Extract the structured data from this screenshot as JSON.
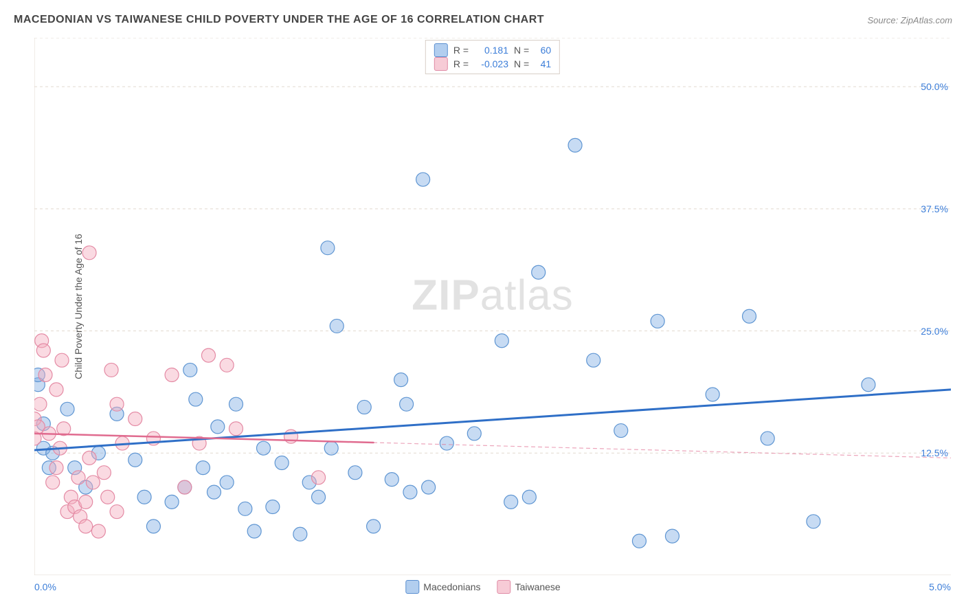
{
  "header": {
    "title": "MACEDONIAN VS TAIWANESE CHILD POVERTY UNDER THE AGE OF 16 CORRELATION CHART",
    "source_label": "Source: ZipAtlas.com"
  },
  "ylabel": "Child Poverty Under the Age of 16",
  "watermark": {
    "bold": "ZIP",
    "rest": "atlas"
  },
  "chart": {
    "type": "scatter-with-regression",
    "background_color": "#ffffff",
    "grid_color": "#e2d9cf",
    "grid_dash": "4 4",
    "border_color": "#e2d9cf",
    "xlim": [
      0.0,
      5.0
    ],
    "ylim": [
      0.0,
      55.0
    ],
    "xtick_major": [
      0.0,
      5.0
    ],
    "xtick_minor_count": 9,
    "ytick_labels": [
      12.5,
      25.0,
      37.5,
      50.0
    ],
    "ylabel_format": "percent_one_decimal",
    "xlabel_format": "percent_one_decimal",
    "marker_radius": 10,
    "marker_stroke_width": 1.2,
    "series": [
      {
        "name": "Macedonians",
        "fill": "rgba(130,175,228,0.45)",
        "stroke": "#5e95d2",
        "points": [
          [
            0.02,
            19.5
          ],
          [
            0.02,
            20.5
          ],
          [
            0.05,
            13.0
          ],
          [
            0.05,
            15.5
          ],
          [
            0.08,
            11.0
          ],
          [
            0.1,
            12.5
          ],
          [
            0.18,
            17.0
          ],
          [
            0.22,
            11.0
          ],
          [
            0.28,
            9.0
          ],
          [
            0.35,
            12.5
          ],
          [
            0.45,
            16.5
          ],
          [
            0.55,
            11.8
          ],
          [
            0.6,
            8.0
          ],
          [
            0.65,
            5.0
          ],
          [
            0.75,
            7.5
          ],
          [
            0.82,
            9.0
          ],
          [
            0.85,
            21.0
          ],
          [
            0.88,
            18.0
          ],
          [
            0.92,
            11.0
          ],
          [
            0.98,
            8.5
          ],
          [
            1.0,
            15.2
          ],
          [
            1.05,
            9.5
          ],
          [
            1.1,
            17.5
          ],
          [
            1.15,
            6.8
          ],
          [
            1.2,
            4.5
          ],
          [
            1.25,
            13.0
          ],
          [
            1.3,
            7.0
          ],
          [
            1.35,
            11.5
          ],
          [
            1.45,
            4.2
          ],
          [
            1.5,
            9.5
          ],
          [
            1.55,
            8.0
          ],
          [
            1.6,
            33.5
          ],
          [
            1.62,
            13.0
          ],
          [
            1.65,
            25.5
          ],
          [
            1.75,
            10.5
          ],
          [
            1.8,
            17.2
          ],
          [
            1.85,
            5.0
          ],
          [
            1.95,
            9.8
          ],
          [
            2.0,
            20.0
          ],
          [
            2.03,
            17.5
          ],
          [
            2.05,
            8.5
          ],
          [
            2.12,
            40.5
          ],
          [
            2.15,
            9.0
          ],
          [
            2.25,
            13.5
          ],
          [
            2.4,
            14.5
          ],
          [
            2.55,
            24.0
          ],
          [
            2.6,
            7.5
          ],
          [
            2.7,
            8.0
          ],
          [
            2.75,
            31.0
          ],
          [
            2.95,
            44.0
          ],
          [
            3.05,
            22.0
          ],
          [
            3.2,
            14.8
          ],
          [
            3.3,
            3.5
          ],
          [
            3.4,
            26.0
          ],
          [
            3.48,
            4.0
          ],
          [
            3.7,
            18.5
          ],
          [
            3.9,
            26.5
          ],
          [
            4.0,
            14.0
          ],
          [
            4.25,
            5.5
          ],
          [
            4.55,
            19.5
          ]
        ],
        "regression": {
          "y_at_xmin": 12.8,
          "y_at_xmax": 19.0,
          "color": "#2f6fc7",
          "width": 3,
          "dash_extend": false
        },
        "stats": {
          "R": "0.181",
          "N": "60"
        }
      },
      {
        "name": "Taiwanese",
        "fill": "rgba(244,172,190,0.45)",
        "stroke": "#e48aa4",
        "points": [
          [
            0.0,
            14.0
          ],
          [
            0.0,
            16.0
          ],
          [
            0.02,
            15.2
          ],
          [
            0.03,
            17.5
          ],
          [
            0.04,
            24.0
          ],
          [
            0.05,
            23.0
          ],
          [
            0.06,
            20.5
          ],
          [
            0.08,
            14.5
          ],
          [
            0.1,
            9.5
          ],
          [
            0.12,
            19.0
          ],
          [
            0.12,
            11.0
          ],
          [
            0.14,
            13.0
          ],
          [
            0.15,
            22.0
          ],
          [
            0.16,
            15.0
          ],
          [
            0.18,
            6.5
          ],
          [
            0.2,
            8.0
          ],
          [
            0.22,
            7.0
          ],
          [
            0.24,
            10.0
          ],
          [
            0.25,
            6.0
          ],
          [
            0.28,
            5.0
          ],
          [
            0.28,
            7.5
          ],
          [
            0.3,
            12.0
          ],
          [
            0.3,
            33.0
          ],
          [
            0.32,
            9.5
          ],
          [
            0.35,
            4.5
          ],
          [
            0.38,
            10.5
          ],
          [
            0.4,
            8.0
          ],
          [
            0.42,
            21.0
          ],
          [
            0.45,
            17.5
          ],
          [
            0.45,
            6.5
          ],
          [
            0.48,
            13.5
          ],
          [
            0.55,
            16.0
          ],
          [
            0.65,
            14.0
          ],
          [
            0.75,
            20.5
          ],
          [
            0.82,
            9.0
          ],
          [
            0.9,
            13.5
          ],
          [
            0.95,
            22.5
          ],
          [
            1.05,
            21.5
          ],
          [
            1.1,
            15.0
          ],
          [
            1.4,
            14.2
          ],
          [
            1.55,
            10.0
          ]
        ],
        "regression": {
          "y_at_xmin": 14.5,
          "y_at_xmax": 12.0,
          "color": "#e06b8f",
          "width": 2.5,
          "solid_until_x": 1.85,
          "dash_extend": true
        },
        "stats": {
          "R": "-0.023",
          "N": "41"
        }
      }
    ]
  },
  "legend": {
    "items": [
      {
        "label": "Macedonians",
        "swatch": "blue"
      },
      {
        "label": "Taiwanese",
        "swatch": "pink"
      }
    ]
  },
  "xaxis": {
    "left_label": "0.0%",
    "right_label": "5.0%"
  },
  "stats_box": {
    "rows": [
      {
        "swatch": "blue",
        "r_label": "R =",
        "r_val": "0.181",
        "n_label": "N =",
        "n_val": "60"
      },
      {
        "swatch": "pink",
        "r_label": "R =",
        "r_val": "-0.023",
        "n_label": "N =",
        "n_val": "41"
      }
    ]
  }
}
